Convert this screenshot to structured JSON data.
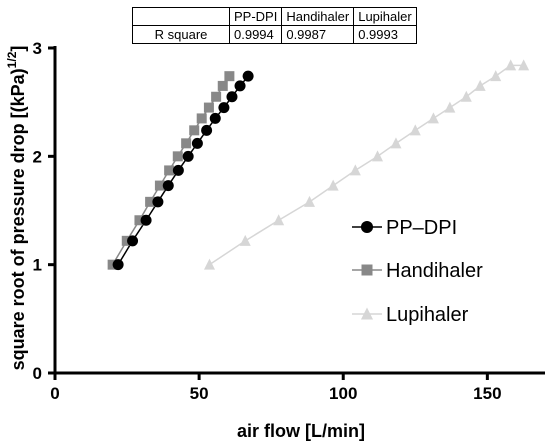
{
  "chart_data": {
    "type": "line",
    "xlabel": "air flow [L/min]",
    "ylabel": "square root of pressure drop [(kPa)",
    "ylabel_sup": "1/2",
    "ylabel_close": "]",
    "xlim": [
      0,
      170
    ],
    "ylim": [
      0,
      3
    ],
    "xticks": [
      0,
      50,
      100,
      150
    ],
    "yticks": [
      0,
      1,
      2,
      3
    ],
    "legend_position": "right",
    "series": [
      {
        "name": "PP–DPI",
        "color": "#000000",
        "marker": "circle",
        "x": [
          21.9,
          26.9,
          31.6,
          35.7,
          39.3,
          42.8,
          46.2,
          49.4,
          52.6,
          55.6,
          58.6,
          61.4,
          64.2,
          67.0
        ],
        "y": [
          1.0,
          1.22,
          1.41,
          1.58,
          1.73,
          1.87,
          2.0,
          2.12,
          2.24,
          2.35,
          2.45,
          2.55,
          2.65,
          2.74
        ]
      },
      {
        "name": "Handihaler",
        "color": "#888888",
        "marker": "square",
        "x": [
          20.0,
          24.9,
          29.3,
          33.0,
          36.4,
          39.6,
          42.6,
          45.5,
          48.3,
          50.9,
          53.4,
          55.9,
          58.2,
          60.5
        ],
        "y": [
          1.0,
          1.22,
          1.41,
          1.58,
          1.73,
          1.87,
          2.0,
          2.12,
          2.24,
          2.35,
          2.45,
          2.55,
          2.65,
          2.74
        ]
      },
      {
        "name": "Lupihaler",
        "color": "#d6d6d6",
        "marker": "triangle",
        "x": [
          53.6,
          66.0,
          77.6,
          88.3,
          96.5,
          104.2,
          111.9,
          118.3,
          125.0,
          131.3,
          137.0,
          142.7,
          147.5,
          152.9,
          158.1,
          162.6
        ],
        "y": [
          1.0,
          1.22,
          1.41,
          1.58,
          1.73,
          1.87,
          2.0,
          2.12,
          2.24,
          2.35,
          2.45,
          2.55,
          2.65,
          2.74,
          2.84,
          2.84
        ]
      }
    ],
    "table": {
      "headers": [
        "",
        "PP-DPI",
        "Handihaler",
        "Lupihaler"
      ],
      "rows": [
        [
          "R square",
          "0.9994",
          "0.9987",
          "0.9993"
        ]
      ]
    }
  }
}
